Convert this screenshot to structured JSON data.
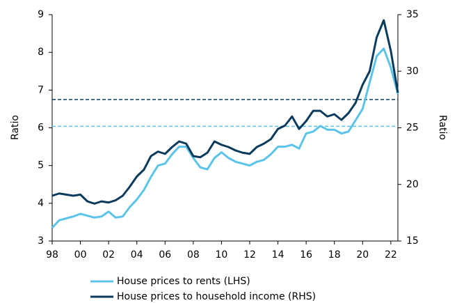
{
  "chart_data": {
    "type": "line",
    "ylabel": "Ratio",
    "y2label": "Ratio",
    "x": [
      1998,
      1998.5,
      1999,
      1999.5,
      2000,
      2000.5,
      2001,
      2001.5,
      2002,
      2002.5,
      2003,
      2003.5,
      2004,
      2004.5,
      2005,
      2005.5,
      2006,
      2006.5,
      2007,
      2007.5,
      2008,
      2008.5,
      2009,
      2009.5,
      2010,
      2010.5,
      2011,
      2011.5,
      2012,
      2012.5,
      2013,
      2013.5,
      2014,
      2014.5,
      2015,
      2015.5,
      2016,
      2016.5,
      2017,
      2017.5,
      2018,
      2018.5,
      2019,
      2019.5,
      2020,
      2020.5,
      2021,
      2021.5,
      2022,
      2022.5
    ],
    "series": [
      {
        "name": "House prices to rents (LHS)",
        "color": "#5bc4e8",
        "axis": "y",
        "values": [
          3.35,
          3.55,
          3.6,
          3.65,
          3.72,
          3.67,
          3.62,
          3.65,
          3.78,
          3.62,
          3.65,
          3.9,
          4.1,
          4.35,
          4.7,
          5.0,
          5.05,
          5.3,
          5.5,
          5.5,
          5.2,
          4.95,
          4.9,
          5.2,
          5.35,
          5.2,
          5.1,
          5.05,
          5.0,
          5.1,
          5.15,
          5.3,
          5.5,
          5.5,
          5.55,
          5.45,
          5.85,
          5.9,
          6.05,
          5.95,
          5.95,
          5.85,
          5.9,
          6.2,
          6.5,
          7.2,
          7.9,
          8.1,
          7.6,
          6.9
        ]
      },
      {
        "name": "House prices to household income (RHS)",
        "color": "#0a3a5c",
        "axis": "y2",
        "values": [
          19,
          19.2,
          19.1,
          19.0,
          19.1,
          18.5,
          18.3,
          18.5,
          18.4,
          18.6,
          19.0,
          19.8,
          20.7,
          21.3,
          22.5,
          22.9,
          22.7,
          23.3,
          23.8,
          23.6,
          22.5,
          22.4,
          22.8,
          23.8,
          23.5,
          23.3,
          23.0,
          22.8,
          22.7,
          23.3,
          23.6,
          24.0,
          24.9,
          25.2,
          26.0,
          24.9,
          25.6,
          26.5,
          26.5,
          26.0,
          26.2,
          25.7,
          26.3,
          27.2,
          28.8,
          30.0,
          33.0,
          34.5,
          31.8,
          28.1
        ]
      }
    ],
    "hlines": [
      {
        "value": 6.04,
        "axis": "y",
        "color": "#5bc4e8"
      },
      {
        "value": 27.5,
        "axis": "y2",
        "color": "#0a3a5c"
      }
    ],
    "xlim": [
      1998,
      2022.5
    ],
    "xticks": [
      {
        "value": 1998,
        "label": "98"
      },
      {
        "value": 2000,
        "label": "00"
      },
      {
        "value": 2002,
        "label": "02"
      },
      {
        "value": 2004,
        "label": "04"
      },
      {
        "value": 2006,
        "label": "06"
      },
      {
        "value": 2008,
        "label": "08"
      },
      {
        "value": 2010,
        "label": "10"
      },
      {
        "value": 2012,
        "label": "12"
      },
      {
        "value": 2014,
        "label": "14"
      },
      {
        "value": 2016,
        "label": "16"
      },
      {
        "value": 2018,
        "label": "18"
      },
      {
        "value": 2020,
        "label": "20"
      },
      {
        "value": 2022,
        "label": "22"
      }
    ],
    "ylim": [
      3,
      9
    ],
    "yticks": [
      3,
      4,
      5,
      6,
      7,
      8,
      9
    ],
    "y2lim": [
      15,
      35
    ],
    "y2ticks": [
      15,
      20,
      25,
      30,
      35
    ]
  }
}
